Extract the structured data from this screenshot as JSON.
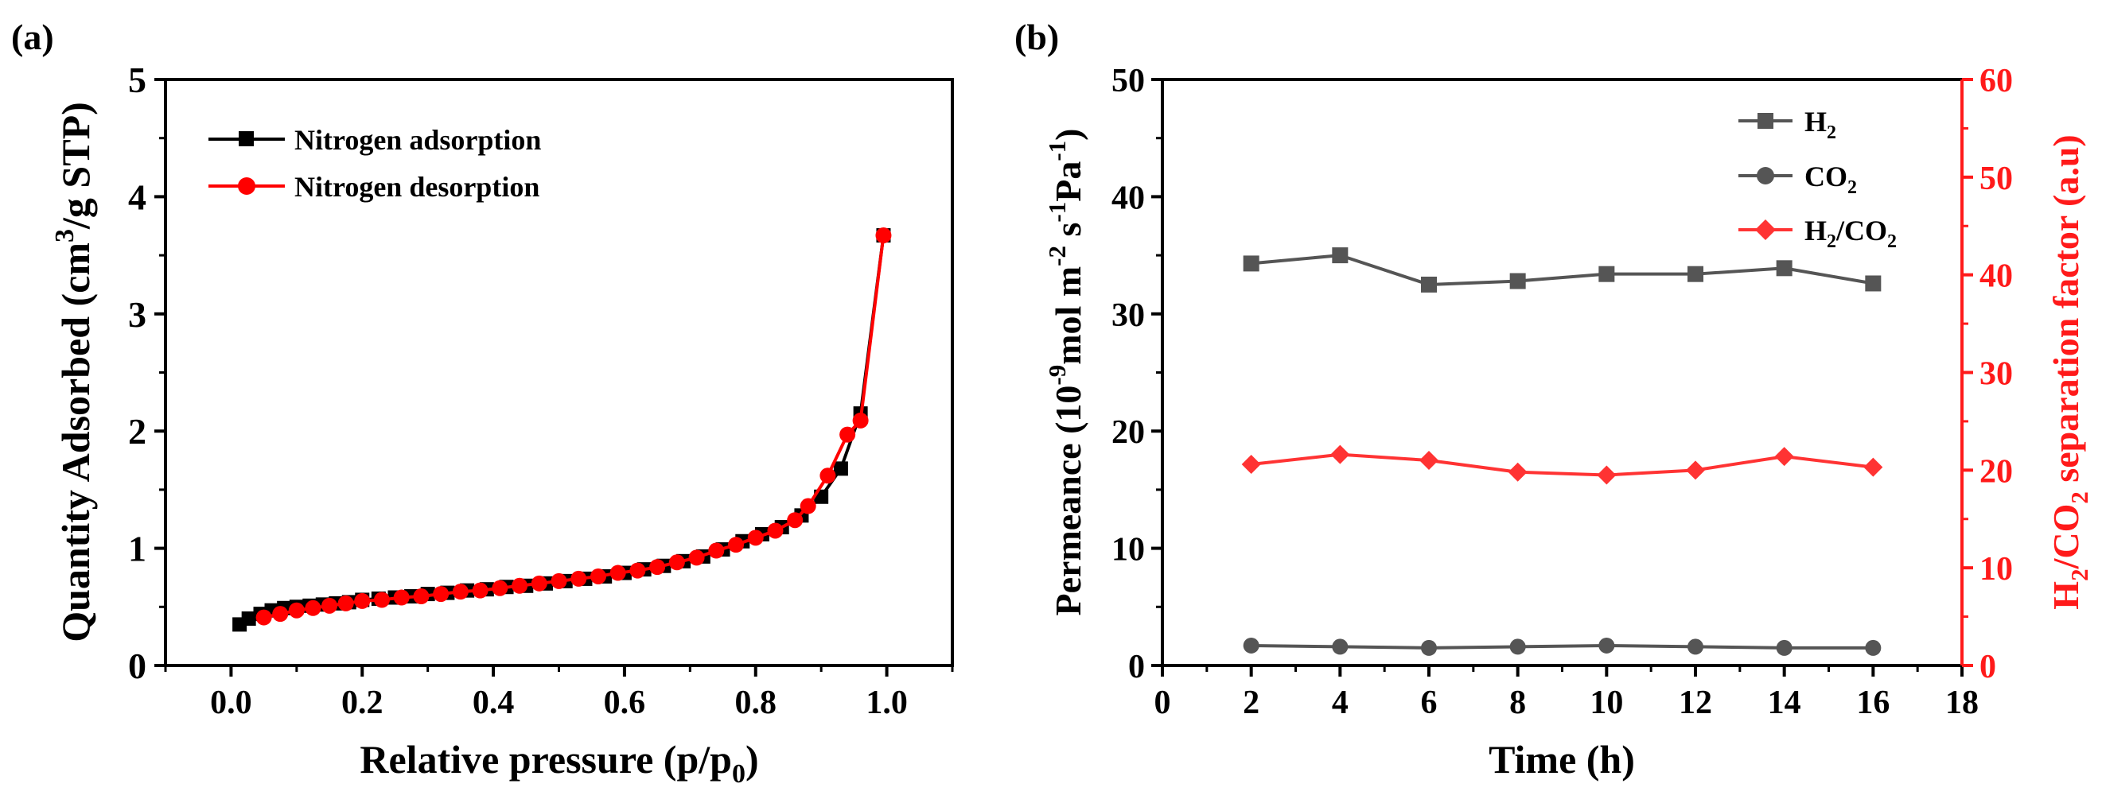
{
  "chart_data": [
    {
      "panel_label": "(a)",
      "type": "line",
      "xlabel": "Relative pressure (p/p",
      "xlabel_sub": "0",
      "xlabel_end": ")",
      "ylabel_pre": "Quantity Adsorbed (cm",
      "ylabel_sup": "3",
      "ylabel_post": "/g STP)",
      "xlim": [
        -0.1,
        1.1
      ],
      "ylim": [
        0,
        5
      ],
      "xticks": [
        0.0,
        0.2,
        0.4,
        0.6,
        0.8,
        1.0
      ],
      "xtick_labels": [
        "0.0",
        "0.2",
        "0.4",
        "0.6",
        "0.8",
        "1.0"
      ],
      "yticks": [
        0,
        1,
        2,
        3,
        4,
        5
      ],
      "ytick_labels": [
        "0",
        "1",
        "2",
        "3",
        "4",
        "5"
      ],
      "legend_position": "top-left",
      "series": [
        {
          "name": "Nitrogen adsorption",
          "color": "#000000",
          "marker": "square",
          "x": [
            0.013,
            0.027,
            0.045,
            0.062,
            0.081,
            0.1,
            0.12,
            0.14,
            0.16,
            0.18,
            0.2,
            0.225,
            0.25,
            0.275,
            0.3,
            0.33,
            0.36,
            0.39,
            0.42,
            0.45,
            0.48,
            0.51,
            0.54,
            0.57,
            0.6,
            0.63,
            0.66,
            0.69,
            0.72,
            0.75,
            0.78,
            0.81,
            0.84,
            0.87,
            0.9,
            0.93,
            0.96,
            0.995
          ],
          "y": [
            0.35,
            0.4,
            0.44,
            0.47,
            0.49,
            0.5,
            0.51,
            0.52,
            0.53,
            0.54,
            0.56,
            0.57,
            0.58,
            0.59,
            0.61,
            0.62,
            0.64,
            0.65,
            0.67,
            0.68,
            0.7,
            0.72,
            0.74,
            0.76,
            0.79,
            0.82,
            0.85,
            0.89,
            0.93,
            0.99,
            1.06,
            1.12,
            1.18,
            1.28,
            1.44,
            1.68,
            2.15,
            3.67
          ]
        },
        {
          "name": "Nitrogen desorption",
          "color": "#ff0000",
          "marker": "circle",
          "x": [
            0.05,
            0.075,
            0.1,
            0.125,
            0.15,
            0.175,
            0.2,
            0.23,
            0.26,
            0.29,
            0.32,
            0.35,
            0.38,
            0.41,
            0.44,
            0.47,
            0.5,
            0.53,
            0.56,
            0.59,
            0.62,
            0.65,
            0.68,
            0.71,
            0.74,
            0.77,
            0.8,
            0.83,
            0.86,
            0.88,
            0.91,
            0.94,
            0.96,
            0.995
          ],
          "y": [
            0.41,
            0.44,
            0.47,
            0.49,
            0.51,
            0.53,
            0.55,
            0.56,
            0.58,
            0.59,
            0.61,
            0.63,
            0.64,
            0.66,
            0.68,
            0.7,
            0.72,
            0.74,
            0.76,
            0.79,
            0.81,
            0.84,
            0.88,
            0.92,
            0.98,
            1.03,
            1.09,
            1.15,
            1.24,
            1.36,
            1.62,
            1.97,
            2.09,
            3.67
          ]
        }
      ]
    },
    {
      "panel_label": "(b)",
      "type": "line",
      "xlabel": "Time (h)",
      "ylabel_left": "Permeance (10",
      "ylabel_left_sup1": "-9",
      "ylabel_left_mid1": "mol m",
      "ylabel_left_sup2": "-2",
      "ylabel_left_mid2": " s",
      "ylabel_left_sup3": "-1",
      "ylabel_left_mid3": "Pa",
      "ylabel_left_sup4": "-1",
      "ylabel_left_end": ")",
      "ylabel_right_pre": "H",
      "ylabel_right_sub1": "2",
      "ylabel_right_mid": "/CO",
      "ylabel_right_sub2": "2",
      "ylabel_right_post": " separation factor (a.u)",
      "xlim": [
        0,
        18
      ],
      "ylim_left": [
        0,
        50
      ],
      "ylim_right": [
        0,
        60
      ],
      "xticks": [
        0,
        2,
        4,
        6,
        8,
        10,
        12,
        14,
        16,
        18
      ],
      "xtick_labels": [
        "0",
        "2",
        "4",
        "6",
        "8",
        "10",
        "12",
        "14",
        "16",
        "18"
      ],
      "yticks_left": [
        0,
        10,
        20,
        30,
        40,
        50
      ],
      "ytick_labels_left": [
        "0",
        "10",
        "20",
        "30",
        "40",
        "50"
      ],
      "yticks_right": [
        0,
        10,
        20,
        30,
        40,
        50,
        60
      ],
      "ytick_labels_right": [
        "0",
        "10",
        "20",
        "30",
        "40",
        "50",
        "60"
      ],
      "right_axis_color": "#ff1a1a",
      "legend_position": "top-right",
      "x": [
        2,
        4,
        6,
        8,
        10,
        12,
        14,
        16
      ],
      "series": [
        {
          "name": "H",
          "name_sub": "2",
          "name_post": "",
          "color": "#555555",
          "marker": "square",
          "axis": "left",
          "values": [
            34.3,
            35.0,
            32.5,
            32.8,
            33.4,
            33.4,
            33.9,
            32.6
          ]
        },
        {
          "name": "CO",
          "name_sub": "2",
          "name_post": "",
          "color": "#555555",
          "marker": "circle",
          "axis": "left",
          "values": [
            1.7,
            1.6,
            1.5,
            1.6,
            1.7,
            1.6,
            1.5,
            1.5
          ]
        },
        {
          "name": "H",
          "name_sub": "2",
          "name_post": "/CO",
          "name_sub2": "2",
          "color": "#ff3333",
          "marker": "diamond",
          "axis": "right",
          "values": [
            20.6,
            21.6,
            21.0,
            19.8,
            19.5,
            20.0,
            21.4,
            20.3
          ]
        }
      ]
    }
  ]
}
